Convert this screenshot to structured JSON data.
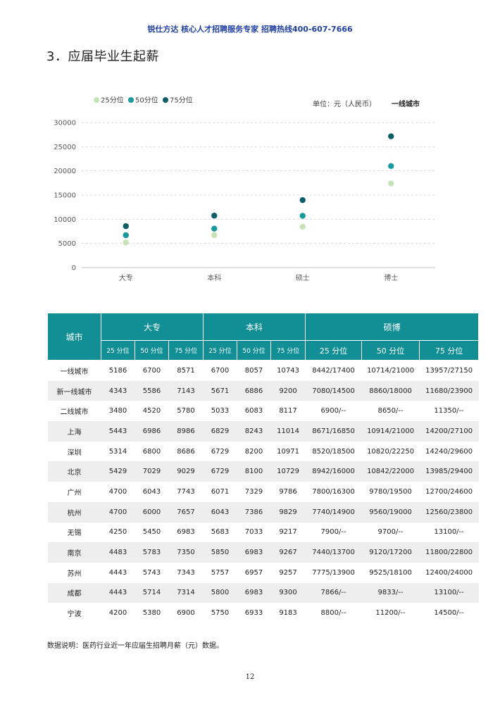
{
  "header": "锐仕方达  核心人才招聘服务专家  招聘热线400-607-7666",
  "section_title": "3．应届毕业生起薪",
  "chart_data": {
    "type": "scatter",
    "categories": [
      "大专",
      "本科",
      "硕士",
      "博士"
    ],
    "series": [
      {
        "name": "25分位",
        "color": "#c7e3b6",
        "values": [
          5186,
          6700,
          8442,
          17400
        ]
      },
      {
        "name": "50分位",
        "color": "#169a9e",
        "values": [
          6700,
          8057,
          10714,
          21000
        ]
      },
      {
        "name": "75分位",
        "color": "#0c5f66",
        "values": [
          8571,
          10743,
          13957,
          27150
        ]
      }
    ],
    "ylim": [
      0,
      30000
    ],
    "yticks": [
      "0",
      "5000",
      "10000",
      "15000",
      "20000",
      "25000",
      "30000"
    ],
    "grid": true,
    "legend_position": "top-left",
    "unit_label": "单位：元（人民币）",
    "subtitle": "一线城市"
  },
  "table": {
    "city_header": "城市",
    "groups": [
      "大专",
      "本科",
      "硕博"
    ],
    "sub_headers": [
      "25 分位",
      "50 分位",
      "75 分位",
      "25 分位",
      "50 分位",
      "75 分位",
      "25 分位",
      "50 分位",
      "75 分位"
    ],
    "rows": [
      [
        "一线城市",
        "5186",
        "6700",
        "8571",
        "6700",
        "8057",
        "10743",
        "8442/17400",
        "10714/21000",
        "13957/27150"
      ],
      [
        "新一线城市",
        "4343",
        "5586",
        "7143",
        "5671",
        "6886",
        "9200",
        "7080/14500",
        "8860/18000",
        "11680/23900"
      ],
      [
        "二线城市",
        "3480",
        "4520",
        "5780",
        "5033",
        "6083",
        "8117",
        "6900/--",
        "8650/--",
        "11350/--"
      ],
      [
        "上海",
        "5443",
        "6986",
        "8986",
        "6829",
        "8243",
        "11014",
        "8671/16850",
        "10914/21000",
        "14200/27100"
      ],
      [
        "深圳",
        "5314",
        "6800",
        "8686",
        "6729",
        "8200",
        "10971",
        "8520/18500",
        "10820/22250",
        "14240/29600"
      ],
      [
        "北京",
        "5429",
        "7029",
        "9029",
        "6729",
        "8100",
        "10729",
        "8942/16000",
        "10842/22000",
        "13985/29400"
      ],
      [
        "广州",
        "4700",
        "6043",
        "7743",
        "6071",
        "7329",
        "9786",
        "7800/16300",
        "9780/19500",
        "12700/24600"
      ],
      [
        "杭州",
        "4700",
        "6000",
        "7657",
        "6043",
        "7386",
        "9829",
        "7740/14900",
        "9560/19000",
        "12560/23800"
      ],
      [
        "无锡",
        "4250",
        "5450",
        "6983",
        "5683",
        "7033",
        "9217",
        "7900/--",
        "9700/--",
        "13100/--"
      ],
      [
        "南京",
        "4483",
        "5783",
        "7350",
        "5850",
        "6983",
        "9267",
        "7440/13700",
        "9120/17200",
        "11800/22800"
      ],
      [
        "苏州",
        "4443",
        "5743",
        "7343",
        "5757",
        "6957",
        "9257",
        "7775/13900",
        "9525/18100",
        "12400/24000"
      ],
      [
        "成都",
        "4443",
        "5714",
        "7314",
        "5800",
        "6983",
        "9300",
        "7866/--",
        "9833/--",
        "13100/--"
      ],
      [
        "宁波",
        "4200",
        "5380",
        "6900",
        "5750",
        "6933",
        "9183",
        "8800/--",
        "11200/--",
        "14500/--"
      ]
    ]
  },
  "note": "数据说明：医药行业近一年应届生招聘月薪（元）数据。",
  "page_number": "12"
}
